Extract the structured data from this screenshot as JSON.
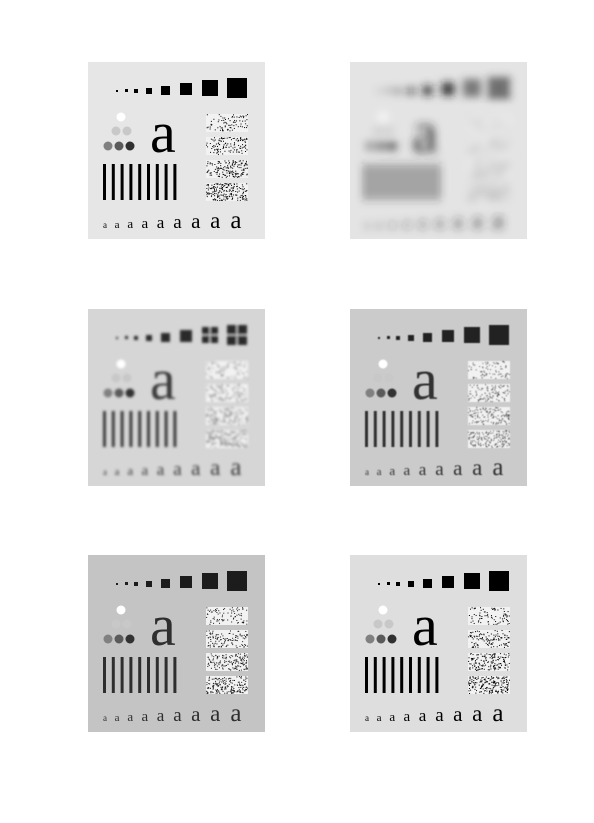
{
  "panels": [
    {
      "id": "p1",
      "bg": "#e6e6e6",
      "ink": "#000000",
      "dot": "#000000",
      "blur": 0,
      "ring": false,
      "big_letter": "a",
      "small_letter": "a"
    },
    {
      "id": "p2",
      "bg": "#e4e4e4",
      "ink": "#2a2a2a",
      "dot": "#1e1e1e",
      "blur": 4.5,
      "ring": true,
      "big_letter": "a",
      "small_letter": "a"
    },
    {
      "id": "p3",
      "bg": "#d6d6d6",
      "ink": "#3a3a3a",
      "dot": "#2a2a2a",
      "blur": 1.2,
      "ring": true,
      "big_letter": "a",
      "small_letter": "a"
    },
    {
      "id": "p4",
      "bg": "#cbcbcb",
      "ink": "#303030",
      "dot": "#202020",
      "blur": 0.4,
      "ring": false,
      "big_letter": "a",
      "small_letter": "a"
    },
    {
      "id": "p5",
      "bg": "#c4c4c4",
      "ink": "#2e2e2e",
      "dot": "#1a1a1a",
      "blur": 0.3,
      "ring": false,
      "big_letter": "a",
      "small_letter": "a"
    },
    {
      "id": "p6",
      "bg": "#dedede",
      "ink": "#000000",
      "dot": "#000000",
      "blur": 0,
      "ring": false,
      "big_letter": "a",
      "small_letter": "a"
    }
  ]
}
